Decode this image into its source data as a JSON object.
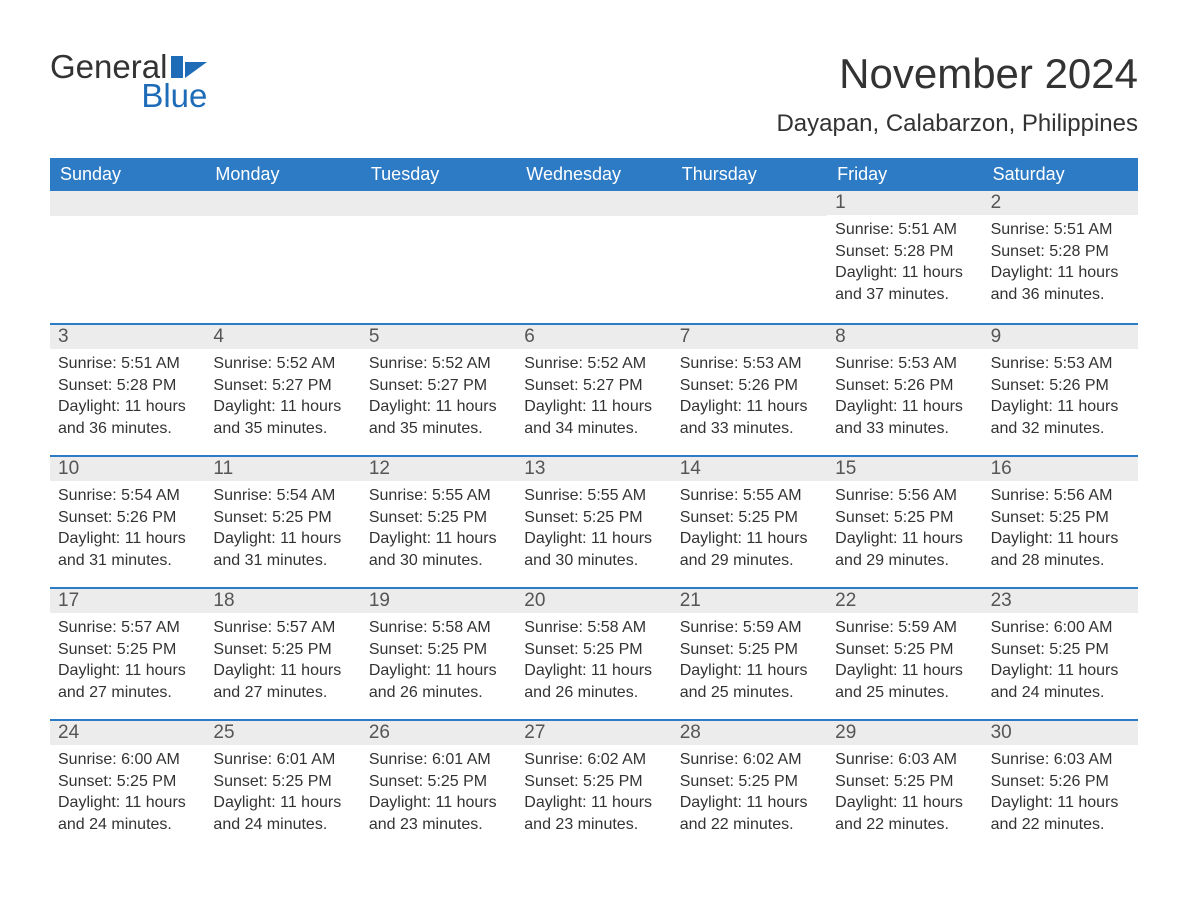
{
  "logo": {
    "line1": "General",
    "line2": "Blue",
    "icon_color": "#1e6bb8"
  },
  "title": {
    "month": "November 2024",
    "location": "Dayapan, Calabarzon, Philippines"
  },
  "styling": {
    "header_bg": "#2d7bc5",
    "header_text": "#ffffff",
    "daynum_bg": "#ececec",
    "daynum_text": "#555555",
    "body_text": "#333333",
    "row_border": "#2d7bc5",
    "background": "#ffffff",
    "font_family": "Arial",
    "month_title_fontsize": 42,
    "location_fontsize": 24,
    "weekday_fontsize": 18,
    "daynum_fontsize": 19,
    "body_fontsize": 16
  },
  "weekdays": [
    "Sunday",
    "Monday",
    "Tuesday",
    "Wednesday",
    "Thursday",
    "Friday",
    "Saturday"
  ],
  "weeks": [
    [
      {
        "day": "",
        "sunrise": "",
        "sunset": "",
        "daylight": ""
      },
      {
        "day": "",
        "sunrise": "",
        "sunset": "",
        "daylight": ""
      },
      {
        "day": "",
        "sunrise": "",
        "sunset": "",
        "daylight": ""
      },
      {
        "day": "",
        "sunrise": "",
        "sunset": "",
        "daylight": ""
      },
      {
        "day": "",
        "sunrise": "",
        "sunset": "",
        "daylight": ""
      },
      {
        "day": "1",
        "sunrise": "Sunrise: 5:51 AM",
        "sunset": "Sunset: 5:28 PM",
        "daylight": "Daylight: 11 hours and 37 minutes."
      },
      {
        "day": "2",
        "sunrise": "Sunrise: 5:51 AM",
        "sunset": "Sunset: 5:28 PM",
        "daylight": "Daylight: 11 hours and 36 minutes."
      }
    ],
    [
      {
        "day": "3",
        "sunrise": "Sunrise: 5:51 AM",
        "sunset": "Sunset: 5:28 PM",
        "daylight": "Daylight: 11 hours and 36 minutes."
      },
      {
        "day": "4",
        "sunrise": "Sunrise: 5:52 AM",
        "sunset": "Sunset: 5:27 PM",
        "daylight": "Daylight: 11 hours and 35 minutes."
      },
      {
        "day": "5",
        "sunrise": "Sunrise: 5:52 AM",
        "sunset": "Sunset: 5:27 PM",
        "daylight": "Daylight: 11 hours and 35 minutes."
      },
      {
        "day": "6",
        "sunrise": "Sunrise: 5:52 AM",
        "sunset": "Sunset: 5:27 PM",
        "daylight": "Daylight: 11 hours and 34 minutes."
      },
      {
        "day": "7",
        "sunrise": "Sunrise: 5:53 AM",
        "sunset": "Sunset: 5:26 PM",
        "daylight": "Daylight: 11 hours and 33 minutes."
      },
      {
        "day": "8",
        "sunrise": "Sunrise: 5:53 AM",
        "sunset": "Sunset: 5:26 PM",
        "daylight": "Daylight: 11 hours and 33 minutes."
      },
      {
        "day": "9",
        "sunrise": "Sunrise: 5:53 AM",
        "sunset": "Sunset: 5:26 PM",
        "daylight": "Daylight: 11 hours and 32 minutes."
      }
    ],
    [
      {
        "day": "10",
        "sunrise": "Sunrise: 5:54 AM",
        "sunset": "Sunset: 5:26 PM",
        "daylight": "Daylight: 11 hours and 31 minutes."
      },
      {
        "day": "11",
        "sunrise": "Sunrise: 5:54 AM",
        "sunset": "Sunset: 5:25 PM",
        "daylight": "Daylight: 11 hours and 31 minutes."
      },
      {
        "day": "12",
        "sunrise": "Sunrise: 5:55 AM",
        "sunset": "Sunset: 5:25 PM",
        "daylight": "Daylight: 11 hours and 30 minutes."
      },
      {
        "day": "13",
        "sunrise": "Sunrise: 5:55 AM",
        "sunset": "Sunset: 5:25 PM",
        "daylight": "Daylight: 11 hours and 30 minutes."
      },
      {
        "day": "14",
        "sunrise": "Sunrise: 5:55 AM",
        "sunset": "Sunset: 5:25 PM",
        "daylight": "Daylight: 11 hours and 29 minutes."
      },
      {
        "day": "15",
        "sunrise": "Sunrise: 5:56 AM",
        "sunset": "Sunset: 5:25 PM",
        "daylight": "Daylight: 11 hours and 29 minutes."
      },
      {
        "day": "16",
        "sunrise": "Sunrise: 5:56 AM",
        "sunset": "Sunset: 5:25 PM",
        "daylight": "Daylight: 11 hours and 28 minutes."
      }
    ],
    [
      {
        "day": "17",
        "sunrise": "Sunrise: 5:57 AM",
        "sunset": "Sunset: 5:25 PM",
        "daylight": "Daylight: 11 hours and 27 minutes."
      },
      {
        "day": "18",
        "sunrise": "Sunrise: 5:57 AM",
        "sunset": "Sunset: 5:25 PM",
        "daylight": "Daylight: 11 hours and 27 minutes."
      },
      {
        "day": "19",
        "sunrise": "Sunrise: 5:58 AM",
        "sunset": "Sunset: 5:25 PM",
        "daylight": "Daylight: 11 hours and 26 minutes."
      },
      {
        "day": "20",
        "sunrise": "Sunrise: 5:58 AM",
        "sunset": "Sunset: 5:25 PM",
        "daylight": "Daylight: 11 hours and 26 minutes."
      },
      {
        "day": "21",
        "sunrise": "Sunrise: 5:59 AM",
        "sunset": "Sunset: 5:25 PM",
        "daylight": "Daylight: 11 hours and 25 minutes."
      },
      {
        "day": "22",
        "sunrise": "Sunrise: 5:59 AM",
        "sunset": "Sunset: 5:25 PM",
        "daylight": "Daylight: 11 hours and 25 minutes."
      },
      {
        "day": "23",
        "sunrise": "Sunrise: 6:00 AM",
        "sunset": "Sunset: 5:25 PM",
        "daylight": "Daylight: 11 hours and 24 minutes."
      }
    ],
    [
      {
        "day": "24",
        "sunrise": "Sunrise: 6:00 AM",
        "sunset": "Sunset: 5:25 PM",
        "daylight": "Daylight: 11 hours and 24 minutes."
      },
      {
        "day": "25",
        "sunrise": "Sunrise: 6:01 AM",
        "sunset": "Sunset: 5:25 PM",
        "daylight": "Daylight: 11 hours and 24 minutes."
      },
      {
        "day": "26",
        "sunrise": "Sunrise: 6:01 AM",
        "sunset": "Sunset: 5:25 PM",
        "daylight": "Daylight: 11 hours and 23 minutes."
      },
      {
        "day": "27",
        "sunrise": "Sunrise: 6:02 AM",
        "sunset": "Sunset: 5:25 PM",
        "daylight": "Daylight: 11 hours and 23 minutes."
      },
      {
        "day": "28",
        "sunrise": "Sunrise: 6:02 AM",
        "sunset": "Sunset: 5:25 PM",
        "daylight": "Daylight: 11 hours and 22 minutes."
      },
      {
        "day": "29",
        "sunrise": "Sunrise: 6:03 AM",
        "sunset": "Sunset: 5:25 PM",
        "daylight": "Daylight: 11 hours and 22 minutes."
      },
      {
        "day": "30",
        "sunrise": "Sunrise: 6:03 AM",
        "sunset": "Sunset: 5:26 PM",
        "daylight": "Daylight: 11 hours and 22 minutes."
      }
    ]
  ]
}
